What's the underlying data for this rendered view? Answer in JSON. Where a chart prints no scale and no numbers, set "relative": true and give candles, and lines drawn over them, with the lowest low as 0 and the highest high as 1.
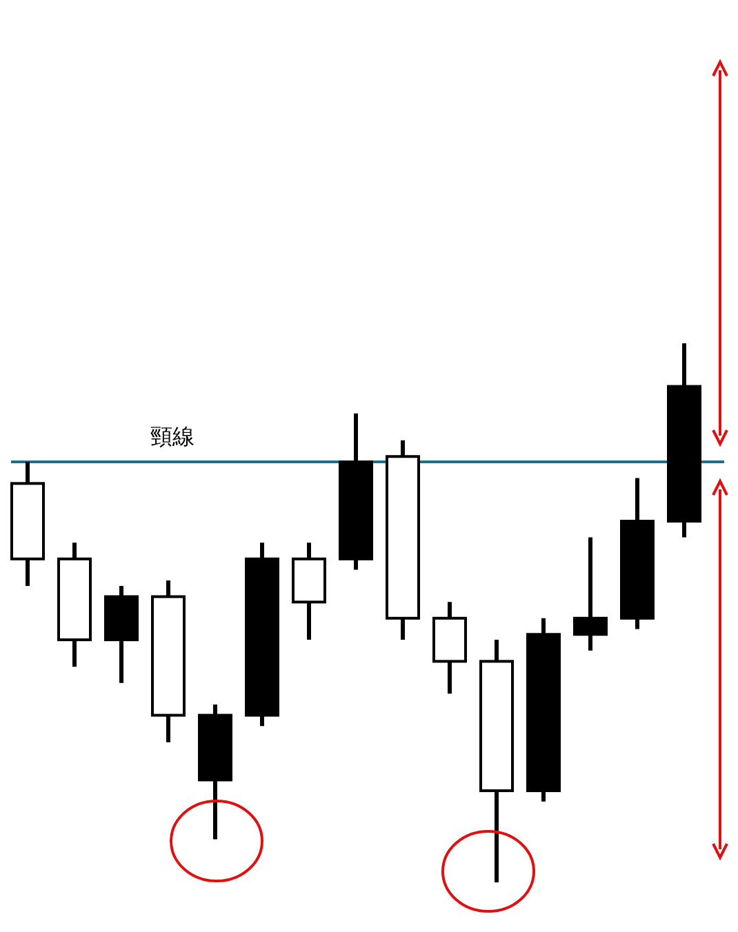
{
  "chart_data": {
    "type": "candlestick",
    "relative": true,
    "categories": [
      null,
      null,
      null,
      null,
      null,
      null,
      null,
      null,
      null,
      null,
      null,
      null,
      null,
      null,
      null
    ],
    "ohlc": [
      [
        0.6,
        0.78,
        0.55,
        0.74
      ],
      [
        0.45,
        0.63,
        0.4,
        0.6
      ],
      [
        0.53,
        0.55,
        0.37,
        0.45
      ],
      [
        0.31,
        0.56,
        0.26,
        0.53
      ],
      [
        0.31,
        0.33,
        0.08,
        0.19
      ],
      [
        0.6,
        0.63,
        0.29,
        0.31
      ],
      [
        0.52,
        0.63,
        0.45,
        0.6
      ],
      [
        0.78,
        0.87,
        0.58,
        0.6
      ],
      [
        0.49,
        0.82,
        0.45,
        0.79
      ],
      [
        0.41,
        0.52,
        0.35,
        0.49
      ],
      [
        0.17,
        0.45,
        0.0,
        0.41
      ],
      [
        0.46,
        0.49,
        0.15,
        0.17
      ],
      [
        0.49,
        0.64,
        0.43,
        0.46
      ],
      [
        0.67,
        0.75,
        0.47,
        0.49
      ],
      [
        0.92,
        1.0,
        0.64,
        0.67
      ]
    ],
    "ref_lines": [
      {
        "axis": "y",
        "value": 0.78,
        "label": "頸線",
        "color": "#1f6e8c"
      }
    ]
  }
}
